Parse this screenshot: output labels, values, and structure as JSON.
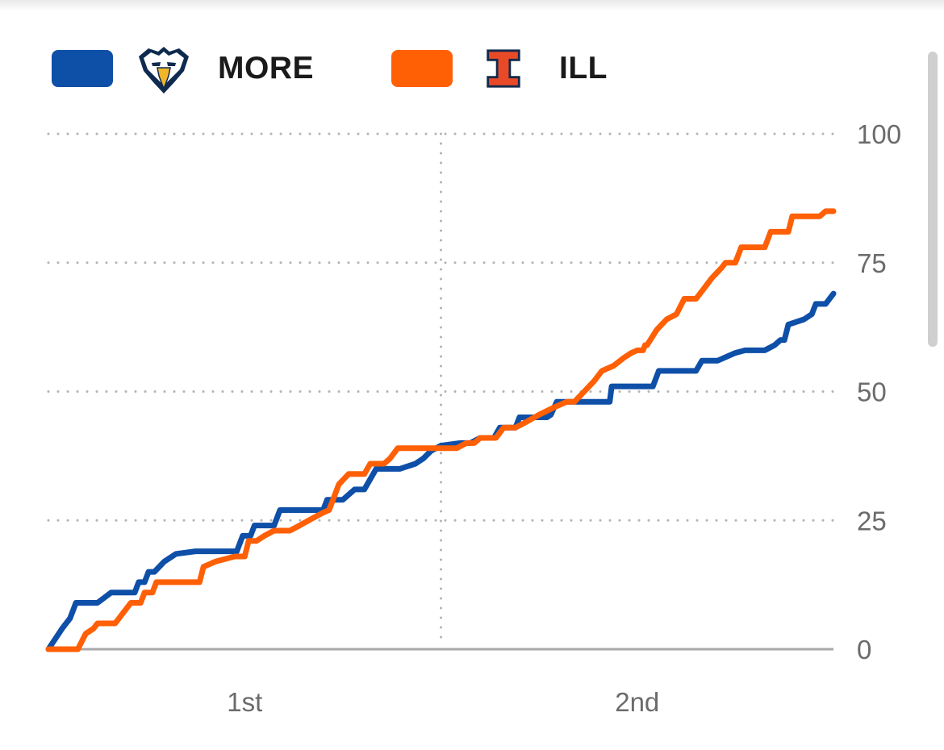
{
  "legend": [
    {
      "name": "MORE",
      "color": "#0e4fa8",
      "logo": "eagle-logo-icon"
    },
    {
      "name": "ILL",
      "color": "#ff5f05",
      "logo": "block-i-logo-icon"
    }
  ],
  "chart_data": {
    "type": "line",
    "xlabel": "",
    "ylabel": "",
    "x_ticks": [
      "1st",
      "2nd"
    ],
    "xlim": [
      0,
      40
    ],
    "ylim": [
      0,
      100
    ],
    "y_ticks": [
      0,
      25,
      50,
      75,
      100
    ],
    "grid": true,
    "legend_position": "top-left",
    "series": [
      {
        "name": "MORE",
        "color": "#0e4fa8",
        "points": [
          [
            0,
            0
          ],
          [
            0.7,
            4
          ],
          [
            1.1,
            6
          ],
          [
            1.4,
            9
          ],
          [
            2.5,
            9
          ],
          [
            3.2,
            11
          ],
          [
            4.4,
            11
          ],
          [
            4.6,
            13
          ],
          [
            4.9,
            13
          ],
          [
            5.1,
            15
          ],
          [
            5.4,
            15
          ],
          [
            5.9,
            17
          ],
          [
            6.5,
            18.5
          ],
          [
            7.5,
            19
          ],
          [
            9.6,
            19
          ],
          [
            9.9,
            22
          ],
          [
            10.3,
            22
          ],
          [
            10.5,
            24
          ],
          [
            11.5,
            24
          ],
          [
            11.8,
            27
          ],
          [
            14,
            27
          ],
          [
            14.2,
            29
          ],
          [
            15,
            29
          ],
          [
            15.6,
            31
          ],
          [
            16.1,
            31
          ],
          [
            16.7,
            35
          ],
          [
            17.9,
            35
          ],
          [
            18.7,
            36
          ],
          [
            19.1,
            37
          ],
          [
            19.5,
            38.5
          ],
          [
            20,
            39.5
          ],
          [
            21,
            40
          ],
          [
            21.5,
            40
          ],
          [
            22,
            41
          ],
          [
            22.7,
            41
          ],
          [
            23,
            43
          ],
          [
            23.8,
            43
          ],
          [
            24,
            45
          ],
          [
            24.5,
            45
          ],
          [
            25.4,
            45
          ],
          [
            25.6,
            45.5
          ],
          [
            25.9,
            48
          ],
          [
            28.6,
            48
          ],
          [
            28.7,
            51
          ],
          [
            30.8,
            51
          ],
          [
            31.1,
            54
          ],
          [
            33,
            54
          ],
          [
            33.3,
            56
          ],
          [
            34.1,
            56
          ],
          [
            35,
            57.5
          ],
          [
            35.5,
            58
          ],
          [
            36.5,
            58
          ],
          [
            37,
            59
          ],
          [
            37.3,
            60
          ],
          [
            37.5,
            60
          ],
          [
            37.7,
            63
          ],
          [
            38.5,
            64
          ],
          [
            38.9,
            65
          ],
          [
            39.1,
            67
          ],
          [
            39.6,
            67
          ],
          [
            40,
            69
          ]
        ]
      },
      {
        "name": "ILL",
        "color": "#ff5f05",
        "points": [
          [
            0,
            0
          ],
          [
            1.5,
            0
          ],
          [
            1.9,
            3
          ],
          [
            2.3,
            4
          ],
          [
            2.5,
            5
          ],
          [
            3.4,
            5
          ],
          [
            3.8,
            7
          ],
          [
            4.2,
            9
          ],
          [
            4.7,
            9
          ],
          [
            4.9,
            11
          ],
          [
            5.3,
            11
          ],
          [
            5.5,
            13
          ],
          [
            7.7,
            13
          ],
          [
            7.9,
            16
          ],
          [
            8.5,
            17
          ],
          [
            9.5,
            18
          ],
          [
            10,
            18
          ],
          [
            10.2,
            21
          ],
          [
            10.6,
            21
          ],
          [
            11,
            22
          ],
          [
            11.5,
            23
          ],
          [
            12.3,
            23
          ],
          [
            12.8,
            24
          ],
          [
            13.5,
            25.5
          ],
          [
            14,
            26.5
          ],
          [
            14.3,
            27
          ],
          [
            14.5,
            29
          ],
          [
            14.8,
            32
          ],
          [
            15.3,
            34
          ],
          [
            16.1,
            34
          ],
          [
            16.4,
            36
          ],
          [
            17.1,
            36
          ],
          [
            17.4,
            37
          ],
          [
            17.8,
            39
          ],
          [
            20.8,
            39
          ],
          [
            21.3,
            40
          ],
          [
            21.7,
            40
          ],
          [
            22,
            41
          ],
          [
            22.8,
            41
          ],
          [
            23.2,
            43
          ],
          [
            23.8,
            43
          ],
          [
            24.3,
            44
          ],
          [
            25,
            45.5
          ],
          [
            25.8,
            47
          ],
          [
            26.4,
            48
          ],
          [
            26.8,
            48
          ],
          [
            27.3,
            50
          ],
          [
            27.8,
            52
          ],
          [
            28.2,
            54
          ],
          [
            28.5,
            54.5
          ],
          [
            28.8,
            55
          ],
          [
            29.3,
            56.5
          ],
          [
            29.7,
            57.5
          ],
          [
            30,
            58
          ],
          [
            30.3,
            58
          ],
          [
            30.4,
            59
          ],
          [
            30.5,
            59
          ],
          [
            31,
            62
          ],
          [
            31.5,
            64
          ],
          [
            32,
            65
          ],
          [
            32.4,
            68
          ],
          [
            33,
            68
          ],
          [
            33.4,
            70
          ],
          [
            33.8,
            72
          ],
          [
            34.3,
            74
          ],
          [
            34.5,
            75
          ],
          [
            35,
            75
          ],
          [
            35.3,
            78
          ],
          [
            36.5,
            78
          ],
          [
            36.8,
            81
          ],
          [
            37.7,
            81
          ],
          [
            37.9,
            84
          ],
          [
            39.3,
            84
          ],
          [
            39.6,
            85
          ],
          [
            40,
            85
          ]
        ]
      }
    ]
  }
}
